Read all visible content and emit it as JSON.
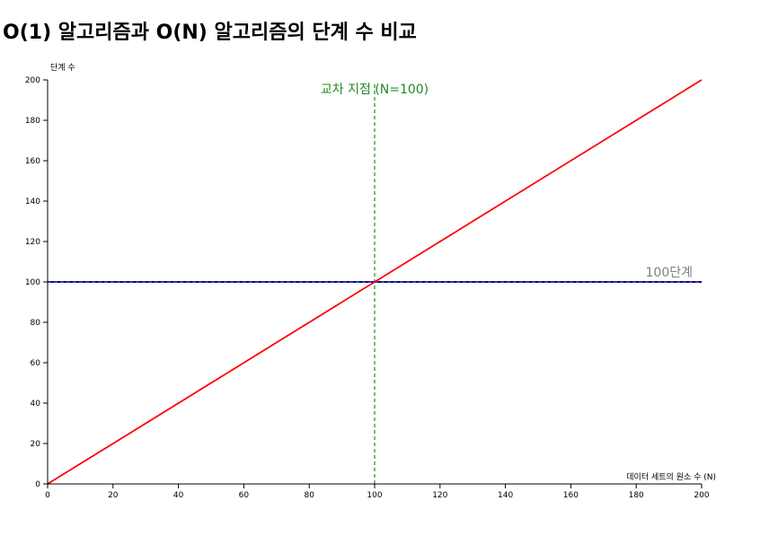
{
  "chart_data": {
    "type": "line",
    "title": "O(1) 알고리즘과 O(N) 알고리즘의 단계 수 비교",
    "xlabel": "데이터 세트의 원소 수 (N)",
    "ylabel": "단계 수",
    "xlim": [
      0,
      200
    ],
    "ylim": [
      0,
      200
    ],
    "xticks": [
      0,
      20,
      40,
      60,
      80,
      100,
      120,
      140,
      160,
      180,
      200
    ],
    "yticks": [
      0,
      20,
      40,
      60,
      80,
      100,
      120,
      140,
      160,
      180,
      200
    ],
    "grid": false,
    "series": [
      {
        "key": "o1",
        "x": [
          0,
          200
        ],
        "y": [
          100,
          100
        ],
        "color": "#00008b",
        "style": "solid-with-dash"
      },
      {
        "key": "on",
        "x": [
          0,
          200
        ],
        "y": [
          0,
          200
        ],
        "color": "#ff0000",
        "style": "solid"
      }
    ],
    "annotations": [
      {
        "key": "crossover",
        "text": "교차 지점 (N=100)",
        "x": 100,
        "color": "#228b22",
        "line_style": "dashed"
      },
      {
        "key": "steps100",
        "text": "100단계",
        "x": 200,
        "y": 100,
        "color": "#808080"
      }
    ]
  }
}
